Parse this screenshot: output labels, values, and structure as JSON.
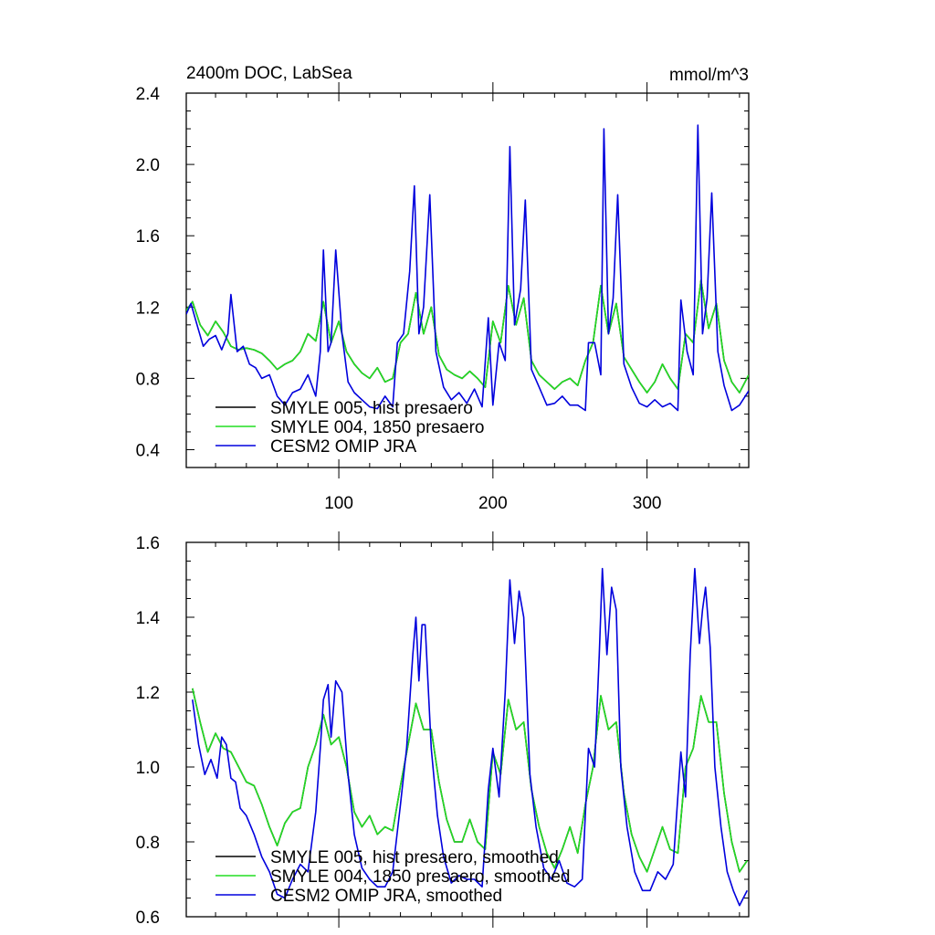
{
  "title_left": "2400m DOC, LabSea",
  "title_right": "mmol/m^3",
  "chart_data": [
    {
      "type": "line",
      "xlim": [
        1,
        366
      ],
      "ylim": [
        0.3,
        2.4
      ],
      "yticks": [
        "0.4",
        "0.8",
        "1.2",
        "1.6",
        "2.0",
        "2.4"
      ],
      "ytick_values": [
        0.4,
        0.8,
        1.2,
        1.6,
        2.0,
        2.4
      ],
      "xticks": [
        "100",
        "200",
        "300"
      ],
      "xtick_values": [
        100,
        200,
        300
      ],
      "series": [
        {
          "name": "SMYLE 005, hist presaero",
          "color": "#000000",
          "x": [
            1,
            5,
            10,
            15,
            20,
            25,
            30,
            35,
            40,
            45,
            50,
            55,
            60,
            65,
            70,
            75,
            80,
            85,
            90,
            95,
            100,
            105,
            110,
            115,
            120,
            125,
            130,
            135,
            140,
            145,
            150,
            155,
            160,
            165,
            170,
            175,
            180,
            185,
            190,
            195,
            200,
            205,
            210,
            215,
            220,
            225,
            230,
            235,
            240,
            245,
            250,
            255,
            260,
            265,
            270,
            275,
            280,
            285,
            290,
            295,
            300,
            305,
            310,
            315,
            320,
            325,
            330,
            335,
            340,
            345,
            350,
            355,
            360,
            366
          ],
          "y": [
            1.18,
            1.23,
            1.1,
            1.04,
            1.12,
            1.06,
            0.98,
            0.96,
            0.97,
            0.96,
            0.94,
            0.9,
            0.85,
            0.88,
            0.9,
            0.95,
            1.05,
            1.01,
            1.23,
            1.0,
            1.12,
            0.95,
            0.88,
            0.83,
            0.8,
            0.86,
            0.78,
            0.8,
            1.0,
            1.05,
            1.28,
            1.05,
            1.2,
            0.93,
            0.85,
            0.82,
            0.8,
            0.84,
            0.8,
            0.75,
            1.12,
            1.0,
            1.32,
            1.1,
            1.25,
            0.9,
            0.82,
            0.78,
            0.74,
            0.78,
            0.8,
            0.76,
            0.9,
            1.0,
            1.32,
            1.05,
            1.22,
            0.92,
            0.85,
            0.78,
            0.72,
            0.78,
            0.88,
            0.8,
            0.74,
            1.05,
            1.0,
            1.35,
            1.08,
            1.22,
            0.9,
            0.78,
            0.72,
            0.82
          ]
        },
        {
          "name": "SMYLE 004, 1850 presaero",
          "color": "#22dd22",
          "x": [
            1,
            5,
            10,
            15,
            20,
            25,
            30,
            35,
            40,
            45,
            50,
            55,
            60,
            65,
            70,
            75,
            80,
            85,
            90,
            95,
            100,
            105,
            110,
            115,
            120,
            125,
            130,
            135,
            140,
            145,
            150,
            155,
            160,
            165,
            170,
            175,
            180,
            185,
            190,
            195,
            200,
            205,
            210,
            215,
            220,
            225,
            230,
            235,
            240,
            245,
            250,
            255,
            260,
            265,
            270,
            275,
            280,
            285,
            290,
            295,
            300,
            305,
            310,
            315,
            320,
            325,
            330,
            335,
            340,
            345,
            350,
            355,
            360,
            366
          ],
          "y": [
            1.18,
            1.23,
            1.1,
            1.04,
            1.12,
            1.06,
            0.98,
            0.96,
            0.97,
            0.96,
            0.94,
            0.9,
            0.85,
            0.88,
            0.9,
            0.95,
            1.05,
            1.01,
            1.23,
            1.0,
            1.12,
            0.95,
            0.88,
            0.83,
            0.8,
            0.86,
            0.78,
            0.8,
            1.0,
            1.05,
            1.28,
            1.05,
            1.2,
            0.93,
            0.85,
            0.82,
            0.8,
            0.84,
            0.8,
            0.75,
            1.12,
            1.0,
            1.32,
            1.1,
            1.25,
            0.9,
            0.82,
            0.78,
            0.74,
            0.78,
            0.8,
            0.76,
            0.9,
            1.0,
            1.32,
            1.05,
            1.22,
            0.92,
            0.85,
            0.78,
            0.72,
            0.78,
            0.88,
            0.8,
            0.74,
            1.05,
            1.0,
            1.35,
            1.08,
            1.22,
            0.9,
            0.78,
            0.72,
            0.82
          ]
        },
        {
          "name": "CESM2 OMIP JRA",
          "color": "#0000dd",
          "x": [
            1,
            4,
            8,
            12,
            16,
            20,
            24,
            28,
            30,
            34,
            38,
            42,
            46,
            50,
            55,
            60,
            65,
            70,
            75,
            80,
            85,
            88,
            90,
            93,
            95,
            98,
            102,
            106,
            110,
            115,
            120,
            125,
            130,
            135,
            138,
            142,
            146,
            149,
            152,
            155,
            159,
            163,
            168,
            173,
            178,
            183,
            188,
            193,
            197,
            200,
            204,
            208,
            211,
            214,
            218,
            221,
            225,
            230,
            235,
            240,
            245,
            250,
            255,
            260,
            262,
            266,
            270,
            272,
            275,
            278,
            281,
            285,
            290,
            295,
            300,
            305,
            310,
            315,
            320,
            322,
            326,
            330,
            333,
            336,
            339,
            342,
            346,
            350,
            355,
            360,
            366
          ],
          "y": [
            1.16,
            1.22,
            1.1,
            0.98,
            1.02,
            1.04,
            0.96,
            1.05,
            1.27,
            0.95,
            0.98,
            0.88,
            0.86,
            0.8,
            0.82,
            0.7,
            0.65,
            0.72,
            0.74,
            0.82,
            0.7,
            0.95,
            1.52,
            0.95,
            1.0,
            1.52,
            1.05,
            0.78,
            0.72,
            0.68,
            0.64,
            0.63,
            0.7,
            0.64,
            1.0,
            1.05,
            1.4,
            1.88,
            1.05,
            1.2,
            1.83,
            0.95,
            0.75,
            0.68,
            0.72,
            0.66,
            0.74,
            0.64,
            1.14,
            0.65,
            1.0,
            0.9,
            2.1,
            1.1,
            1.3,
            1.8,
            0.85,
            0.75,
            0.65,
            0.66,
            0.7,
            0.65,
            0.65,
            0.62,
            1.0,
            1.0,
            0.82,
            2.2,
            1.05,
            1.25,
            1.83,
            0.88,
            0.75,
            0.66,
            0.64,
            0.68,
            0.64,
            0.66,
            0.62,
            1.24,
            0.95,
            0.82,
            2.22,
            1.05,
            1.25,
            1.84,
            0.95,
            0.76,
            0.62,
            0.65,
            0.73
          ]
        }
      ]
    },
    {
      "type": "line",
      "xlim": [
        1,
        366
      ],
      "ylim": [
        0.6,
        1.6
      ],
      "yticks": [
        "0.6",
        "0.8",
        "1.0",
        "1.2",
        "1.4",
        "1.6"
      ],
      "ytick_values": [
        0.6,
        0.8,
        1.0,
        1.2,
        1.4,
        1.6
      ],
      "series": [
        {
          "name": "SMYLE 005, hist presaero, smoothed",
          "color": "#000000",
          "x": [
            5,
            10,
            15,
            20,
            25,
            30,
            35,
            40,
            45,
            50,
            55,
            60,
            65,
            70,
            75,
            80,
            85,
            90,
            95,
            100,
            105,
            110,
            115,
            120,
            125,
            130,
            135,
            140,
            145,
            150,
            155,
            160,
            165,
            170,
            175,
            180,
            185,
            190,
            195,
            200,
            205,
            210,
            215,
            220,
            225,
            230,
            235,
            240,
            245,
            250,
            255,
            260,
            265,
            270,
            275,
            280,
            285,
            290,
            295,
            300,
            305,
            310,
            315,
            320,
            325,
            330,
            335,
            340,
            345,
            350,
            355,
            360,
            365
          ],
          "y": [
            1.21,
            1.12,
            1.04,
            1.09,
            1.05,
            1.04,
            1.0,
            0.96,
            0.95,
            0.9,
            0.84,
            0.79,
            0.85,
            0.88,
            0.89,
            1.0,
            1.06,
            1.14,
            1.06,
            1.08,
            1.0,
            0.88,
            0.84,
            0.87,
            0.82,
            0.84,
            0.83,
            0.95,
            1.06,
            1.17,
            1.1,
            1.1,
            0.96,
            0.86,
            0.8,
            0.8,
            0.86,
            0.8,
            0.78,
            1.04,
            0.98,
            1.18,
            1.1,
            1.12,
            0.94,
            0.84,
            0.77,
            0.73,
            0.78,
            0.84,
            0.77,
            0.9,
            1.0,
            1.19,
            1.1,
            1.12,
            0.93,
            0.82,
            0.76,
            0.72,
            0.78,
            0.84,
            0.78,
            0.77,
            1.0,
            1.05,
            1.19,
            1.12,
            1.12,
            0.93,
            0.8,
            0.72,
            0.75
          ]
        },
        {
          "name": "SMYLE 004, 1850 presaero, smoothed",
          "color": "#22dd22",
          "x": [
            5,
            10,
            15,
            20,
            25,
            30,
            35,
            40,
            45,
            50,
            55,
            60,
            65,
            70,
            75,
            80,
            85,
            90,
            95,
            100,
            105,
            110,
            115,
            120,
            125,
            130,
            135,
            140,
            145,
            150,
            155,
            160,
            165,
            170,
            175,
            180,
            185,
            190,
            195,
            200,
            205,
            210,
            215,
            220,
            225,
            230,
            235,
            240,
            245,
            250,
            255,
            260,
            265,
            270,
            275,
            280,
            285,
            290,
            295,
            300,
            305,
            310,
            315,
            320,
            325,
            330,
            335,
            340,
            345,
            350,
            355,
            360,
            365
          ],
          "y": [
            1.21,
            1.12,
            1.04,
            1.09,
            1.05,
            1.04,
            1.0,
            0.96,
            0.95,
            0.9,
            0.84,
            0.79,
            0.85,
            0.88,
            0.89,
            1.0,
            1.06,
            1.14,
            1.06,
            1.08,
            1.0,
            0.88,
            0.84,
            0.87,
            0.82,
            0.84,
            0.83,
            0.95,
            1.06,
            1.17,
            1.1,
            1.1,
            0.96,
            0.86,
            0.8,
            0.8,
            0.86,
            0.8,
            0.78,
            1.04,
            0.98,
            1.18,
            1.1,
            1.12,
            0.94,
            0.84,
            0.77,
            0.73,
            0.78,
            0.84,
            0.77,
            0.9,
            1.0,
            1.19,
            1.1,
            1.12,
            0.93,
            0.82,
            0.76,
            0.72,
            0.78,
            0.84,
            0.78,
            0.77,
            1.0,
            1.05,
            1.19,
            1.12,
            1.12,
            0.93,
            0.8,
            0.72,
            0.75
          ]
        },
        {
          "name": "CESM2 OMIP JRA, smoothed",
          "color": "#0000dd",
          "x": [
            5,
            9,
            13,
            17,
            21,
            24,
            27,
            30,
            33,
            36,
            40,
            45,
            50,
            55,
            60,
            65,
            70,
            75,
            80,
            85,
            88,
            90,
            93,
            95,
            98,
            102,
            106,
            110,
            115,
            120,
            125,
            130,
            135,
            140,
            144,
            148,
            150,
            152,
            154,
            156,
            160,
            164,
            168,
            173,
            178,
            183,
            188,
            193,
            197,
            200,
            204,
            208,
            211,
            214,
            217,
            220,
            224,
            228,
            233,
            238,
            243,
            248,
            253,
            258,
            262,
            266,
            269,
            271,
            274,
            277,
            280,
            283,
            287,
            292,
            297,
            302,
            307,
            312,
            317,
            322,
            325,
            328,
            331,
            334,
            336,
            338,
            341,
            344,
            348,
            352,
            356,
            360,
            365
          ],
          "y": [
            1.18,
            1.06,
            0.98,
            1.02,
            0.97,
            1.08,
            1.06,
            0.97,
            0.96,
            0.89,
            0.87,
            0.82,
            0.76,
            0.72,
            0.66,
            0.65,
            0.7,
            0.74,
            0.72,
            0.88,
            1.05,
            1.18,
            1.22,
            1.08,
            1.23,
            1.2,
            0.98,
            0.82,
            0.73,
            0.7,
            0.68,
            0.68,
            0.72,
            0.9,
            1.05,
            1.3,
            1.4,
            1.23,
            1.38,
            1.38,
            1.05,
            0.87,
            0.76,
            0.69,
            0.71,
            0.7,
            0.7,
            0.68,
            0.94,
            1.05,
            0.92,
            1.2,
            1.5,
            1.33,
            1.47,
            1.4,
            0.98,
            0.84,
            0.73,
            0.7,
            0.75,
            0.69,
            0.68,
            0.7,
            1.05,
            1.0,
            1.3,
            1.53,
            1.3,
            1.48,
            1.42,
            1.0,
            0.84,
            0.72,
            0.67,
            0.67,
            0.72,
            0.7,
            0.74,
            1.04,
            0.92,
            1.3,
            1.53,
            1.33,
            1.42,
            1.48,
            1.32,
            1.0,
            0.84,
            0.72,
            0.67,
            0.63,
            0.67
          ]
        }
      ]
    }
  ]
}
